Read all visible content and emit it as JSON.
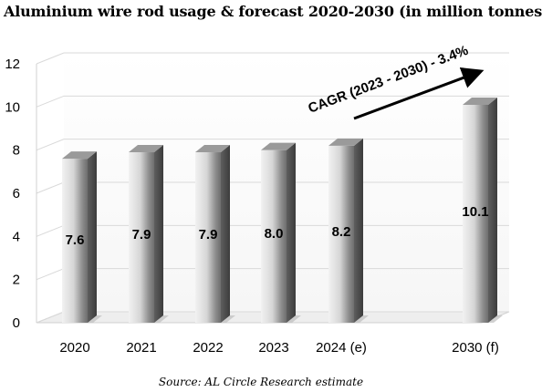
{
  "chart_data": {
    "type": "bar",
    "title": "Aluminium wire rod usage & forecast 2020-2030 (in million tonnes",
    "categories": [
      "2020",
      "2021",
      "2022",
      "2023",
      "2024 (e)",
      "2030 (f)"
    ],
    "values": [
      7.6,
      7.9,
      7.9,
      8.0,
      8.2,
      10.1
    ],
    "data_labels": [
      "7.6",
      "7.9",
      "7.9",
      "8.0",
      "8.2",
      "10.1"
    ],
    "ylim": [
      0,
      12
    ],
    "yticks": [
      0,
      2,
      4,
      6,
      8,
      10,
      12
    ],
    "xlabel": "",
    "ylabel": "",
    "grid": true,
    "annotation": "CAGR (2023 - 2030) - 3.4%",
    "source": "Source: AL Circle Research estimate"
  }
}
